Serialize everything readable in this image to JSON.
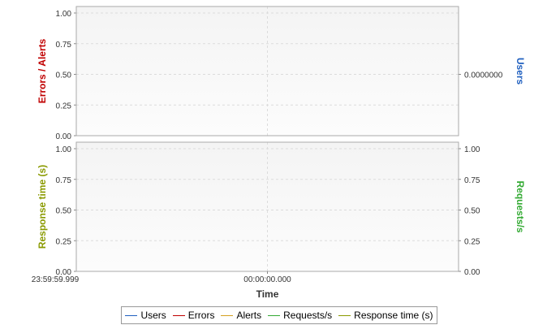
{
  "chart_data": {
    "type": "line",
    "xlabel": "Time",
    "x_ticks": [
      "23:59:59.999",
      "00:00:00.000"
    ],
    "colors": {
      "users": "#1f5fbf",
      "errors": "#c00000",
      "alerts": "#d4a020",
      "requests": "#33aa33",
      "response": "#8a9a00"
    },
    "panels": [
      {
        "left_axis": {
          "label": "Errors / Alerts",
          "color": "#c00000",
          "range": [
            0,
            1
          ],
          "ticks": [
            "0.00",
            "0.25",
            "0.50",
            "0.75",
            "1.00"
          ]
        },
        "right_axis": {
          "label": "Users",
          "color": "#1f5fbf",
          "ticks": [
            "0.0000000"
          ]
        },
        "series": []
      },
      {
        "left_axis": {
          "label": "Response time (s)",
          "color": "#8a9a00",
          "range": [
            0,
            1
          ],
          "ticks": [
            "0.00",
            "0.25",
            "0.50",
            "0.75",
            "1.00"
          ]
        },
        "right_axis": {
          "label": "Requests/s",
          "color": "#33aa33",
          "range": [
            0,
            1
          ],
          "ticks": [
            "0.00",
            "0.25",
            "0.50",
            "0.75",
            "1.00"
          ]
        },
        "series": []
      }
    ],
    "legend": [
      {
        "name": "Users",
        "color": "#1f5fbf"
      },
      {
        "name": "Errors",
        "color": "#c00000"
      },
      {
        "name": "Alerts",
        "color": "#d4a020"
      },
      {
        "name": "Requests/s",
        "color": "#33aa33"
      },
      {
        "name": "Response time (s)",
        "color": "#8a9a00"
      }
    ],
    "legend_position": "bottom",
    "grid": true
  }
}
